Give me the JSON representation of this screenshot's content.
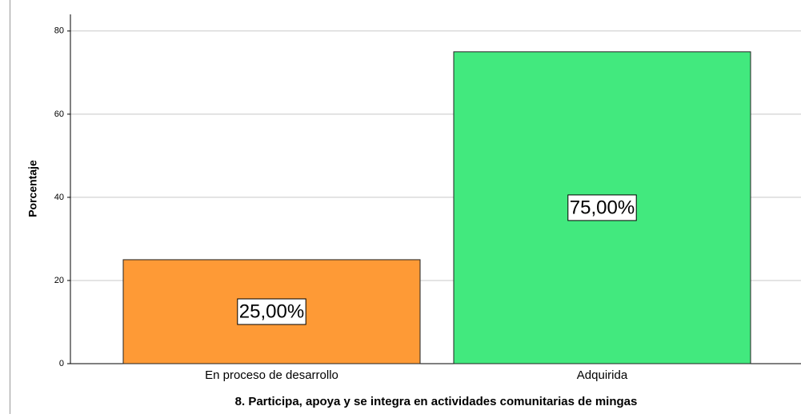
{
  "chart_data": {
    "type": "bar",
    "categories": [
      "En proceso de desarrollo",
      "Adquirida"
    ],
    "values": [
      25,
      75
    ],
    "value_labels": [
      "25,00%",
      "75,00%"
    ],
    "colors": [
      "#fe9a36",
      "#42e97e"
    ],
    "y_label": "Porcentaje",
    "x_label": "8. Participa, apoya y se integra en actividades comunitarias de mingas",
    "ylim": [
      0,
      84
    ],
    "yticks": [
      0,
      20,
      40,
      60,
      80
    ],
    "grid": true
  }
}
